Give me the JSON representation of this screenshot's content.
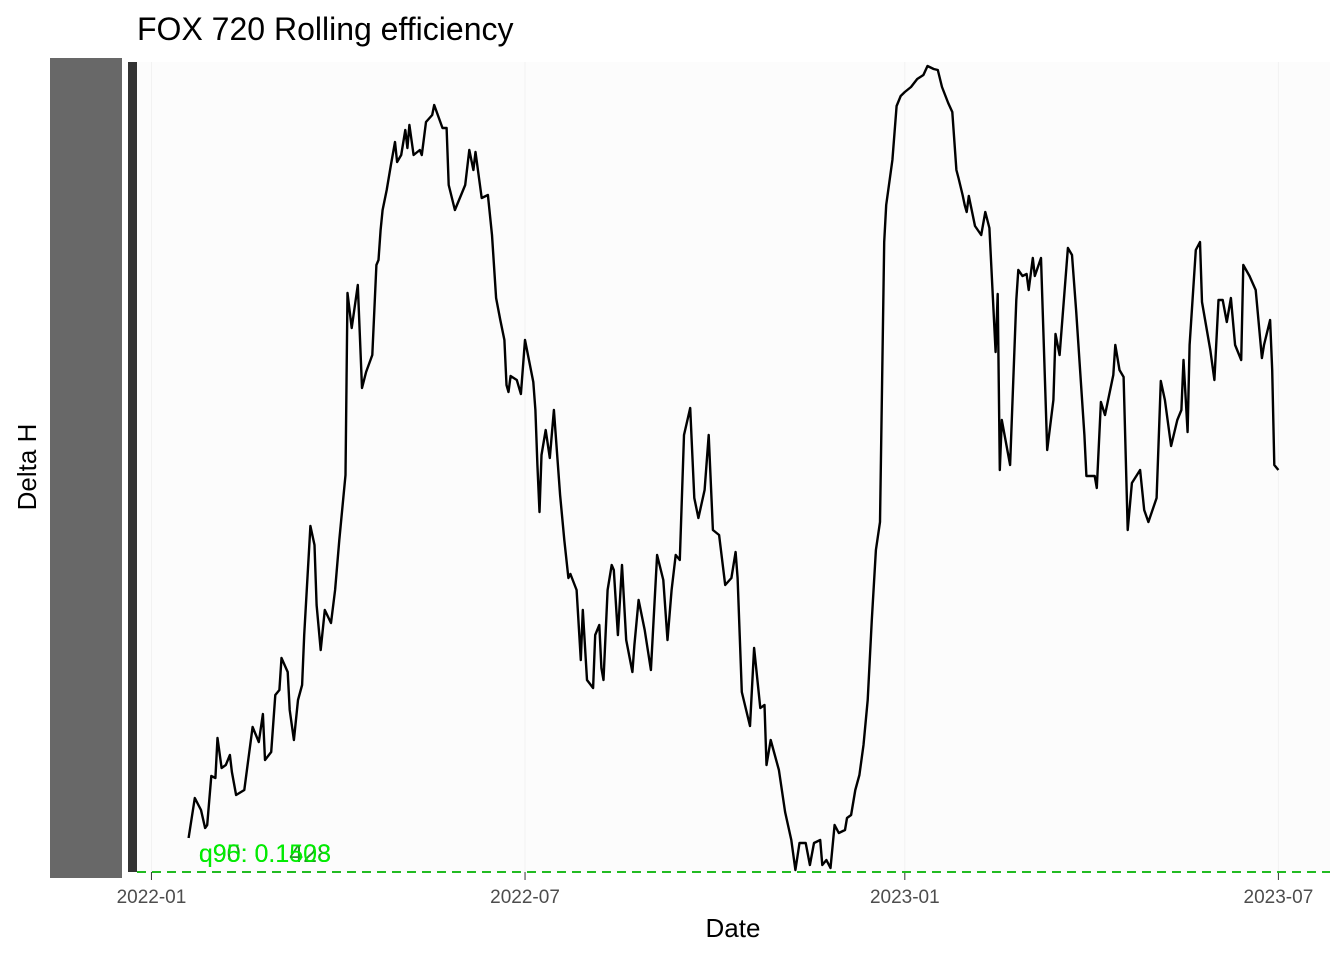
{
  "chart_data": {
    "type": "line",
    "title": "FOX 720 Rolling efficiency",
    "x_label": "Date",
    "y_label": "Delta H",
    "xlim": [
      -7,
      571
    ],
    "ylim": [
      0,
      810
    ],
    "xticks": [
      {
        "value": 0,
        "label": "2022-01"
      },
      {
        "value": 181,
        "label": "2022-07"
      },
      {
        "value": 365,
        "label": "2023-01"
      },
      {
        "value": 546,
        "label": "2023-07"
      }
    ],
    "grid": true,
    "hline": {
      "value": 0,
      "color": "#22bb22"
    },
    "annotations": [
      {
        "text": "q90: 0.1428",
        "x": 23,
        "y": 19,
        "color": "#1e9e1e"
      },
      {
        "text": "q95: 0.1503",
        "x": 23,
        "y": 19,
        "color": "#00ee00"
      }
    ],
    "series": [
      {
        "color": "#000000",
        "x": [
          18,
          21,
          24,
          26,
          27,
          29,
          31,
          32,
          34,
          36,
          38,
          39,
          41,
          45,
          47,
          49,
          52,
          54,
          55,
          58,
          60,
          62,
          63,
          66,
          67,
          69,
          71,
          73,
          74,
          77,
          79,
          80,
          82,
          84,
          87,
          89,
          91,
          94,
          95,
          97,
          100,
          102,
          104,
          107,
          109,
          110,
          111,
          112,
          114,
          116,
          118,
          119,
          121,
          123,
          124,
          125,
          127,
          130,
          131,
          133,
          136,
          137,
          141,
          143,
          144,
          147,
          150,
          152,
          154,
          156,
          157,
          160,
          163,
          165,
          167,
          169,
          171,
          172,
          173,
          174,
          177,
          179,
          181,
          185,
          186,
          187,
          188,
          189,
          191,
          193,
          195,
          198,
          200,
          202,
          203,
          206,
          208,
          209,
          211,
          214,
          215,
          217,
          218,
          219,
          221,
          223,
          224,
          226,
          228,
          230,
          233,
          234,
          236,
          239,
          242,
          245,
          248,
          250,
          252,
          254,
          256,
          258,
          261,
          263,
          265,
          268,
          270,
          272,
          275,
          278,
          281,
          283,
          284,
          286,
          290,
          292,
          295,
          297,
          298,
          300,
          304,
          307,
          310,
          312,
          314,
          317,
          319,
          321,
          324,
          325,
          327,
          329,
          331,
          333,
          336,
          337,
          339,
          341,
          343,
          345,
          347,
          349,
          351,
          353,
          355,
          356,
          359,
          361,
          363,
          365,
          368,
          371,
          374,
          376,
          379,
          381,
          383,
          386,
          388,
          390,
          391,
          393,
          394,
          395,
          396,
          399,
          402,
          404,
          406,
          409,
          410,
          411,
          412,
          416,
          419,
          420,
          422,
          424,
          425,
          427,
          428,
          431,
          434,
          437,
          438,
          440,
          444,
          446,
          448,
          452,
          453,
          457,
          458,
          460,
          462,
          466,
          467,
          469,
          471,
          473,
          475,
          479,
          481,
          483,
          487,
          489,
          491,
          494,
          497,
          499,
          500,
          502,
          503,
          506,
          508,
          509,
          513,
          515,
          517,
          519,
          521,
          523,
          525,
          528,
          529,
          532,
          535,
          538,
          539,
          542,
          543,
          544,
          546
        ],
        "values": [
          34,
          74,
          62,
          44,
          47,
          96,
          94,
          134,
          104,
          107,
          117,
          100,
          77,
          82,
          114,
          145,
          130,
          158,
          112,
          120,
          177,
          182,
          214,
          200,
          162,
          132,
          172,
          187,
          237,
          346,
          327,
          267,
          222,
          262,
          249,
          282,
          332,
          397,
          579,
          544,
          587,
          484,
          500,
          517,
          607,
          612,
          642,
          662,
          682,
          707,
          730,
          710,
          717,
          742,
          724,
          747,
          717,
          722,
          717,
          750,
          757,
          767,
          744,
          744,
          687,
          662,
          677,
          687,
          722,
          702,
          720,
          674,
          677,
          637,
          574,
          552,
          532,
          487,
          480,
          496,
          492,
          478,
          532,
          490,
          462,
          407,
          360,
          417,
          442,
          414,
          462,
          377,
          332,
          294,
          298,
          282,
          212,
          262,
          192,
          184,
          237,
          247,
          204,
          192,
          282,
          307,
          302,
          237,
          307,
          232,
          200,
          227,
          272,
          242,
          202,
          317,
          292,
          232,
          282,
          317,
          312,
          437,
          464,
          374,
          354,
          382,
          437,
          342,
          337,
          287,
          294,
          320,
          294,
          180,
          146,
          224,
          164,
          167,
          107,
          132,
          102,
          60,
          32,
          2,
          29,
          29,
          7,
          29,
          32,
          7,
          12,
          4,
          47,
          39,
          42,
          54,
          57,
          82,
          97,
          127,
          172,
          252,
          322,
          350,
          630,
          667,
          712,
          766,
          776,
          780,
          785,
          793,
          797,
          806,
          803,
          802,
          785,
          769,
          760,
          702,
          694,
          677,
          667,
          660,
          676,
          646,
          637,
          660,
          644,
          520,
          578,
          402,
          452,
          407,
          572,
          602,
          596,
          598,
          582,
          614,
          596,
          614,
          422,
          472,
          538,
          517,
          624,
          617,
          562,
          437,
          396,
          396,
          384,
          470,
          457,
          497,
          527,
          502,
          495,
          342,
          389,
          402,
          362,
          350,
          374,
          491,
          472,
          426,
          452,
          462,
          512,
          440,
          527,
          622,
          630,
          570,
          522,
          492,
          572,
          572,
          550,
          574,
          527,
          512,
          607,
          596,
          582,
          514,
          527,
          552,
          502,
          407,
          402
        ]
      }
    ]
  }
}
